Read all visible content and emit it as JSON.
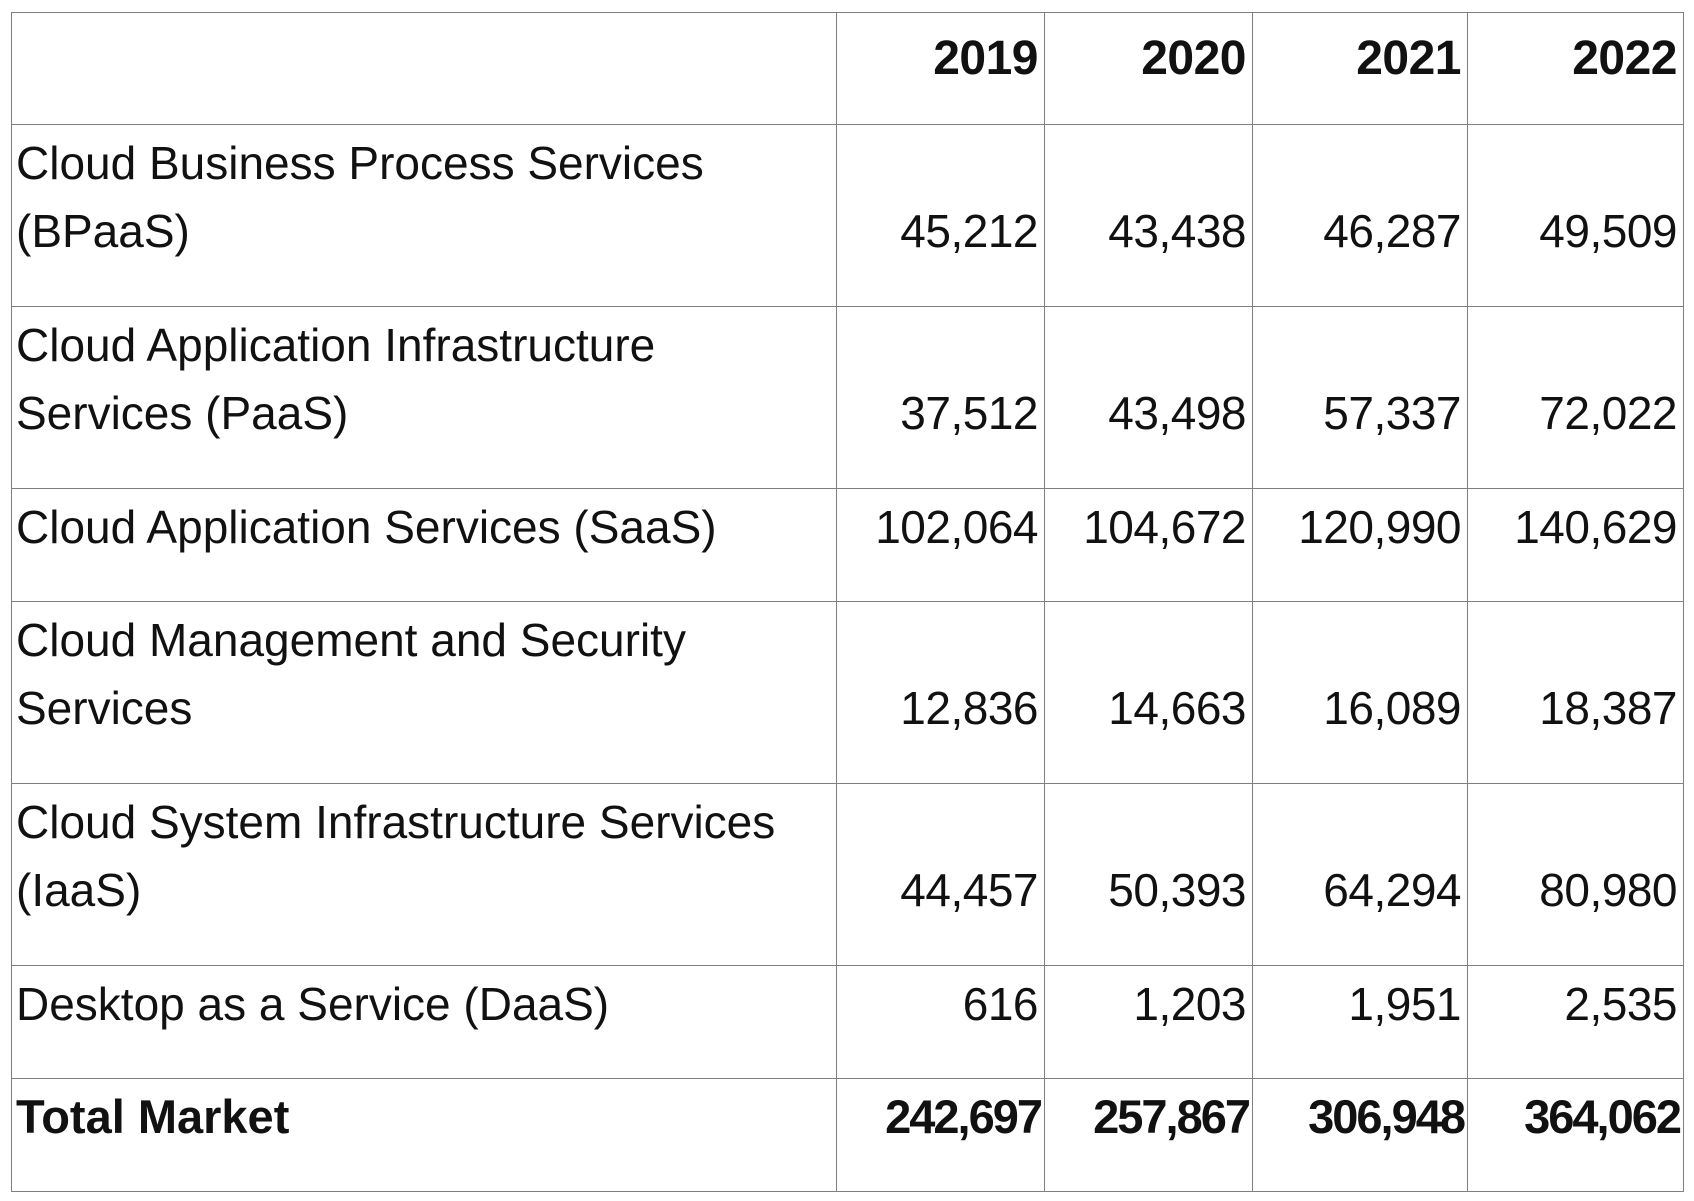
{
  "chart_data": {
    "type": "table",
    "columns": [
      "",
      "2019",
      "2020",
      "2021",
      "2022"
    ],
    "rows": [
      {
        "label": "Cloud Business Process Services (BPaaS)",
        "values": [
          "45,212",
          "43,438",
          "46,287",
          "49,509"
        ]
      },
      {
        "label": "Cloud Application Infrastructure Services (PaaS)",
        "values": [
          "37,512",
          "43,498",
          "57,337",
          "72,022"
        ]
      },
      {
        "label": "Cloud Application Services (SaaS)",
        "values": [
          "102,064",
          "104,672",
          "120,990",
          "140,629"
        ]
      },
      {
        "label": "Cloud Management and Security Services",
        "values": [
          "12,836",
          "14,663",
          "16,089",
          "18,387"
        ]
      },
      {
        "label": "Cloud System Infrastructure Services (IaaS)",
        "values": [
          "44,457",
          "50,393",
          "64,294",
          "80,980"
        ]
      },
      {
        "label": "Desktop as a Service (DaaS)",
        "values": [
          "616",
          "1,203",
          "1,951",
          "2,535"
        ]
      }
    ],
    "total": {
      "label": "Total Market",
      "values": [
        "242,697",
        "257,867",
        "306,948",
        "364,062"
      ]
    }
  }
}
